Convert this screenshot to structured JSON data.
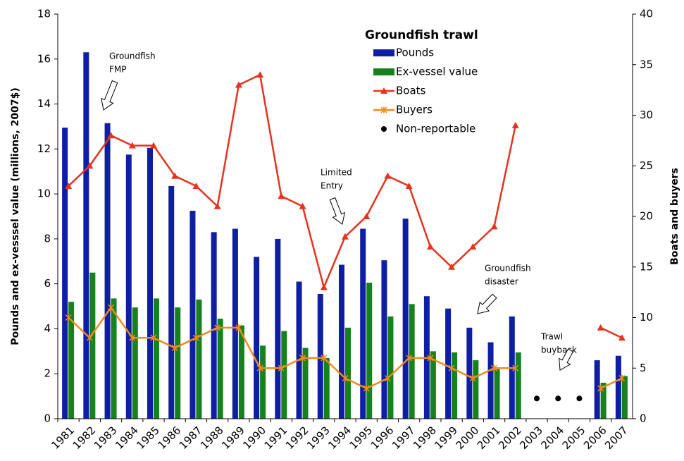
{
  "chart_data": {
    "type": "bar",
    "legend_title": "Groundfish trawl",
    "y_label": "Pounds and ex-vesssel value (millions, 2007$)",
    "y2_label": "Boats and buyers",
    "categories": [
      "1981",
      "1982",
      "1983",
      "1984",
      "1985",
      "1986",
      "1987",
      "1988",
      "1989",
      "1990",
      "1991",
      "1992",
      "1993",
      "1994",
      "1995",
      "1996",
      "1997",
      "1998",
      "1999",
      "2000",
      "2001",
      "2002",
      "2003",
      "2004",
      "2005",
      "2006",
      "2007"
    ],
    "ylim": [
      0,
      18
    ],
    "yticks": [
      0,
      2,
      4,
      6,
      8,
      10,
      12,
      14,
      16,
      18
    ],
    "y2lim": [
      0,
      40
    ],
    "y2ticks": [
      0,
      5,
      10,
      15,
      20,
      25,
      30,
      35,
      40
    ],
    "series": [
      {
        "name": "Pounds",
        "type": "bar",
        "color": "#0f1fa3",
        "values": [
          12.95,
          16.3,
          13.15,
          11.75,
          12.05,
          10.35,
          9.25,
          8.3,
          8.45,
          7.2,
          8.0,
          6.1,
          5.55,
          6.85,
          8.45,
          7.05,
          8.9,
          5.45,
          4.9,
          4.05,
          3.4,
          4.55,
          null,
          null,
          null,
          2.6,
          2.8
        ]
      },
      {
        "name": "Ex-vessel value",
        "type": "bar",
        "color": "#17801f",
        "values": [
          5.2,
          6.5,
          5.35,
          4.95,
          5.35,
          4.95,
          5.3,
          4.45,
          4.15,
          3.25,
          3.9,
          3.15,
          2.7,
          4.05,
          6.05,
          4.55,
          5.1,
          3.0,
          2.95,
          2.6,
          2.2,
          2.95,
          null,
          null,
          null,
          1.6,
          1.9
        ]
      },
      {
        "name": "Boats",
        "type": "line",
        "marker": "triangle",
        "axis": "y2",
        "color": "#e8321e",
        "values": [
          23,
          25,
          28,
          27,
          27,
          24,
          23,
          21,
          33,
          34,
          22,
          21,
          13,
          18,
          20,
          24,
          23,
          17,
          15,
          17,
          19,
          29,
          null,
          null,
          null,
          9,
          8
        ]
      },
      {
        "name": "Buyers",
        "type": "line",
        "marker": "asterisk",
        "axis": "y2",
        "color": "#f08a1e",
        "values": [
          10,
          8,
          11,
          8,
          8,
          7,
          8,
          9,
          9,
          5,
          5,
          6,
          6,
          4,
          3,
          4,
          6,
          6,
          5,
          4,
          5,
          5,
          null,
          null,
          null,
          3,
          4
        ]
      },
      {
        "name": "Non-reportable",
        "type": "scatter",
        "marker": "circle",
        "axis": "y2",
        "color": "#000000",
        "values": [
          null,
          null,
          null,
          null,
          null,
          null,
          null,
          null,
          null,
          null,
          null,
          null,
          null,
          null,
          null,
          null,
          null,
          null,
          null,
          null,
          null,
          null,
          2,
          2,
          2,
          null,
          null
        ]
      }
    ],
    "annotations": [
      {
        "lines": [
          "Groundfish",
          "FMP"
        ]
      },
      {
        "lines": [
          "Limited",
          "Entry"
        ]
      },
      {
        "lines": [
          "Groundfish",
          "disaster"
        ]
      },
      {
        "lines": [
          "Trawl",
          "buyback"
        ]
      }
    ]
  }
}
